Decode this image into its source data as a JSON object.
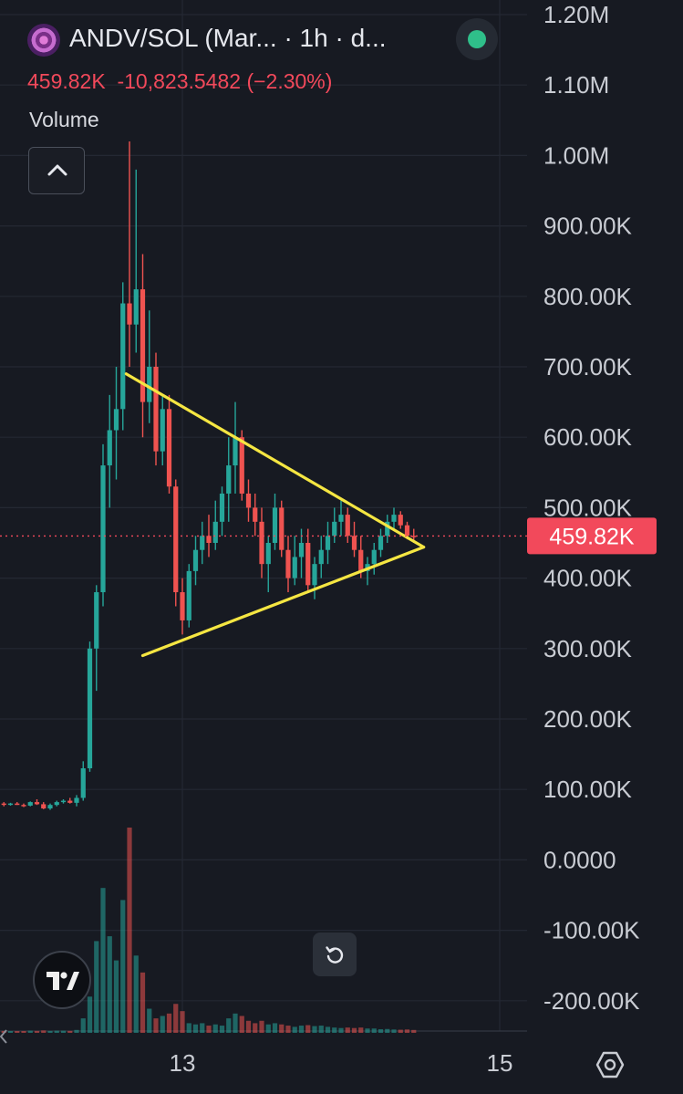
{
  "header": {
    "symbol_title": "ANDV/SOL (Mar... · 1h · d...",
    "price": "459.82K",
    "change": "-10,823.5482",
    "change_pct": "(−2.30%)",
    "volume_label": "Volume",
    "status_color": "#2fbf8a"
  },
  "icons": {
    "collapse": "chevron-up-icon",
    "reset": "rotate-left-icon",
    "logo": "tradingview-logo-icon",
    "settings": "hexagon-gear-icon"
  },
  "colors": {
    "background": "#171a22",
    "up": "#26a69a",
    "down": "#ef5350",
    "trendline": "#f5e642",
    "price_tag": "#f2495b"
  },
  "chart_data": {
    "type": "candlestick",
    "title": "",
    "xlabel": "",
    "ylabel": "",
    "ylim": [
      -240000,
      1220000
    ],
    "y_ticks": [
      "1.20M",
      "1.10M",
      "1.00M",
      "900.00K",
      "800.00K",
      "700.00K",
      "600.00K",
      "500.00K",
      "400.00K",
      "300.00K",
      "200.00K",
      "100.00K",
      "0.0000",
      "-100.00K",
      "-200.00K"
    ],
    "y_tick_values": [
      1200000,
      1100000,
      1000000,
      900000,
      800000,
      700000,
      600000,
      500000,
      400000,
      300000,
      200000,
      100000,
      0,
      -100000,
      -200000
    ],
    "x_ticks": [
      "13",
      "15"
    ],
    "x_tick_hours": [
      27,
      75
    ],
    "x_range_hours": [
      0,
      79
    ],
    "current_price": 459820,
    "current_price_label": "459.82K",
    "trendlines": [
      {
        "name": "",
        "from": [
          18.5,
          690000
        ],
        "to": [
          63.5,
          444000
        ]
      },
      {
        "name": "",
        "from": [
          21,
          290000
        ],
        "to": [
          63.5,
          444000
        ]
      }
    ],
    "candles_per_hour": 1,
    "candles": [
      [
        0,
        80000,
        82000,
        76000,
        79000,
        800
      ],
      [
        1,
        79000,
        81000,
        77000,
        80000,
        700
      ],
      [
        2,
        80000,
        82000,
        78000,
        78000,
        600
      ],
      [
        3,
        78000,
        80000,
        75000,
        77000,
        700
      ],
      [
        4,
        77000,
        83000,
        76000,
        82000,
        900
      ],
      [
        5,
        82000,
        86000,
        78000,
        79000,
        800
      ],
      [
        6,
        79000,
        82000,
        72000,
        73000,
        1000
      ],
      [
        7,
        73000,
        80000,
        71000,
        78000,
        800
      ],
      [
        8,
        78000,
        84000,
        76000,
        82000,
        900
      ],
      [
        9,
        82000,
        86000,
        80000,
        84000,
        900
      ],
      [
        10,
        84000,
        88000,
        80000,
        81000,
        800
      ],
      [
        11,
        81000,
        92000,
        76000,
        88000,
        1200
      ],
      [
        12,
        88000,
        140000,
        84000,
        130000,
        6000
      ],
      [
        13,
        130000,
        310000,
        125000,
        300000,
        15000
      ],
      [
        14,
        300000,
        390000,
        240000,
        380000,
        38000
      ],
      [
        15,
        380000,
        590000,
        360000,
        560000,
        60000
      ],
      [
        16,
        560000,
        660000,
        500000,
        610000,
        40000
      ],
      [
        17,
        610000,
        700000,
        540000,
        640000,
        30000
      ],
      [
        18,
        640000,
        820000,
        610000,
        790000,
        55000
      ],
      [
        19,
        790000,
        1020000,
        700000,
        760000,
        85000
      ],
      [
        20,
        760000,
        980000,
        720000,
        810000,
        32000
      ],
      [
        21,
        810000,
        860000,
        600000,
        650000,
        25000
      ],
      [
        22,
        650000,
        780000,
        620000,
        700000,
        10000
      ],
      [
        23,
        700000,
        720000,
        560000,
        580000,
        6000
      ],
      [
        24,
        580000,
        660000,
        560000,
        640000,
        7000
      ],
      [
        25,
        640000,
        660000,
        520000,
        530000,
        8000
      ],
      [
        26,
        530000,
        540000,
        360000,
        380000,
        12000
      ],
      [
        27,
        380000,
        400000,
        320000,
        340000,
        9000
      ],
      [
        28,
        340000,
        420000,
        330000,
        410000,
        4000
      ],
      [
        29,
        410000,
        460000,
        390000,
        440000,
        3500
      ],
      [
        30,
        440000,
        480000,
        420000,
        460000,
        4000
      ],
      [
        31,
        460000,
        490000,
        430000,
        450000,
        3000
      ],
      [
        32,
        450000,
        510000,
        440000,
        480000,
        3500
      ],
      [
        33,
        480000,
        530000,
        460000,
        520000,
        3000
      ],
      [
        34,
        520000,
        600000,
        480000,
        560000,
        6000
      ],
      [
        35,
        560000,
        650000,
        520000,
        600000,
        8000
      ],
      [
        36,
        600000,
        610000,
        510000,
        520000,
        7000
      ],
      [
        37,
        520000,
        540000,
        480000,
        500000,
        5000
      ],
      [
        38,
        500000,
        520000,
        460000,
        480000,
        4000
      ],
      [
        39,
        480000,
        500000,
        400000,
        420000,
        5000
      ],
      [
        40,
        420000,
        460000,
        380000,
        450000,
        3500
      ],
      [
        41,
        450000,
        520000,
        440000,
        500000,
        4000
      ],
      [
        42,
        500000,
        510000,
        430000,
        440000,
        3500
      ],
      [
        43,
        440000,
        460000,
        380000,
        400000,
        3000
      ],
      [
        44,
        400000,
        460000,
        390000,
        430000,
        2500
      ],
      [
        45,
        430000,
        470000,
        400000,
        450000,
        3000
      ],
      [
        46,
        450000,
        470000,
        380000,
        390000,
        3200
      ],
      [
        47,
        390000,
        430000,
        370000,
        420000,
        2800
      ],
      [
        48,
        420000,
        460000,
        400000,
        440000,
        3000
      ],
      [
        49,
        440000,
        480000,
        420000,
        460000,
        2500
      ],
      [
        50,
        460000,
        500000,
        450000,
        480000,
        2200
      ],
      [
        51,
        480000,
        510000,
        460000,
        490000,
        2000
      ],
      [
        52,
        490000,
        500000,
        450000,
        460000,
        2200
      ],
      [
        53,
        460000,
        480000,
        430000,
        440000,
        2000
      ],
      [
        54,
        440000,
        460000,
        400000,
        410000,
        2200
      ],
      [
        55,
        410000,
        430000,
        390000,
        420000,
        1800
      ],
      [
        56,
        420000,
        450000,
        405000,
        440000,
        1800
      ],
      [
        57,
        440000,
        470000,
        430000,
        460000,
        1500
      ],
      [
        58,
        460000,
        490000,
        450000,
        480000,
        1600
      ],
      [
        59,
        480000,
        500000,
        470000,
        490000,
        1400
      ],
      [
        60,
        490000,
        495000,
        470000,
        475000,
        1300
      ],
      [
        61,
        475000,
        480000,
        455000,
        460000,
        1400
      ],
      [
        62,
        460000,
        470000,
        450000,
        459820,
        1200
      ]
    ]
  }
}
